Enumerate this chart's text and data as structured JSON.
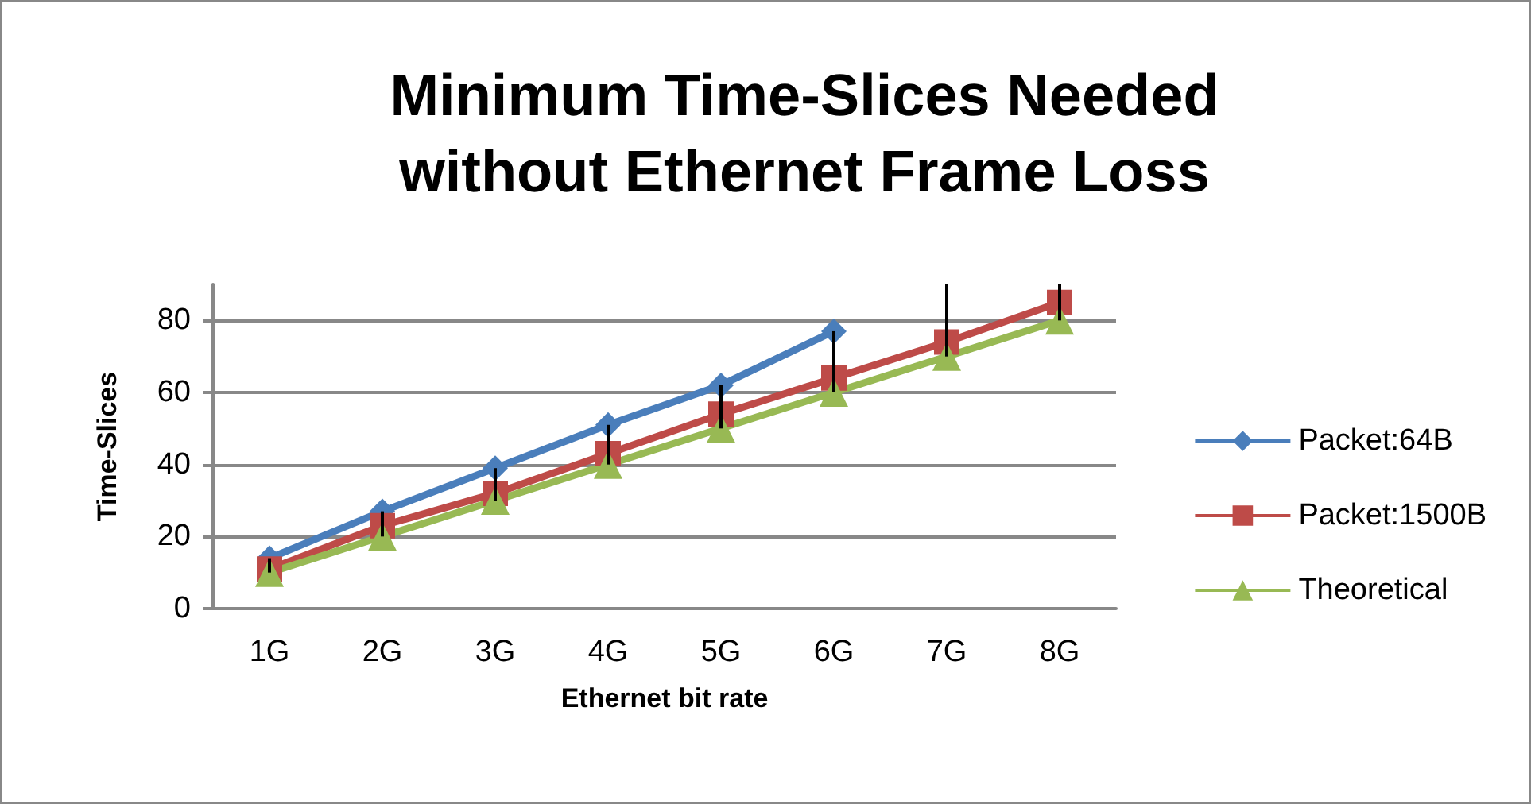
{
  "chart_data": {
    "type": "line",
    "title": "Minimum Time-Slices Needed\nwithout Ethernet Frame Loss",
    "xlabel": "Ethernet bit rate",
    "ylabel": "Time-Slices",
    "categories": [
      "1G",
      "2G",
      "3G",
      "4G",
      "5G",
      "6G",
      "7G",
      "8G"
    ],
    "series": [
      {
        "name": "Packet:64B",
        "color": "#4a7ebb",
        "marker": "diamond",
        "values": [
          14,
          27,
          39,
          51,
          62,
          77,
          null,
          null
        ]
      },
      {
        "name": "Packet:1500B",
        "color": "#be4b48",
        "marker": "square",
        "values": [
          11,
          23,
          32,
          43,
          54,
          64,
          74,
          85
        ]
      },
      {
        "name": "Theoretical",
        "color": "#98b954",
        "marker": "triangle",
        "values": [
          10,
          20,
          30,
          40,
          50,
          60,
          70,
          80
        ],
        "errors": [
          [
            10,
            14
          ],
          [
            20,
            27
          ],
          [
            30,
            39
          ],
          [
            40,
            51
          ],
          [
            50,
            62
          ],
          [
            60,
            77
          ],
          [
            70,
            90
          ],
          [
            80,
            90
          ]
        ]
      }
    ],
    "ylim": [
      0,
      90
    ],
    "yticks": [
      0,
      20,
      40,
      60,
      80
    ],
    "grid": "y",
    "legend": "right"
  }
}
